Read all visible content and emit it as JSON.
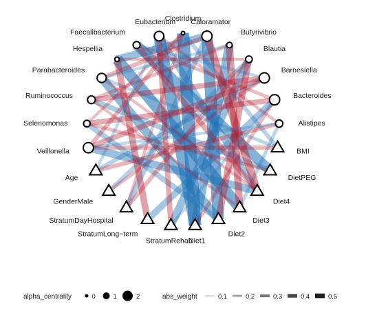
{
  "nodes": [
    {
      "id": "Clostridium",
      "shape": "circle",
      "size": 0.0
    },
    {
      "id": "Caloramator",
      "shape": "circle",
      "size": 1.9
    },
    {
      "id": "Butyrivibrio",
      "shape": "circle",
      "size": 0.6
    },
    {
      "id": "Blautia",
      "shape": "circle",
      "size": 0.9
    },
    {
      "id": "Barnesiella",
      "shape": "circle",
      "size": 1.9
    },
    {
      "id": "Bacteroides",
      "shape": "circle",
      "size": 1.9
    },
    {
      "id": "Alistipes",
      "shape": "circle",
      "size": 1.1
    },
    {
      "id": "BMI",
      "shape": "triangle"
    },
    {
      "id": "DietPEG",
      "shape": "triangle"
    },
    {
      "id": "Diet4",
      "shape": "triangle"
    },
    {
      "id": "Diet3",
      "shape": "triangle"
    },
    {
      "id": "Diet2",
      "shape": "triangle"
    },
    {
      "id": "Diet1",
      "shape": "triangle"
    },
    {
      "id": "StratumRehab",
      "shape": "triangle"
    },
    {
      "id": "StratumLong−term",
      "shape": "triangle"
    },
    {
      "id": "StratumDayHospital",
      "shape": "triangle"
    },
    {
      "id": "GenderMale",
      "shape": "triangle"
    },
    {
      "id": "Age",
      "shape": "triangle"
    },
    {
      "id": "Veillonella",
      "shape": "circle",
      "size": 1.9
    },
    {
      "id": "Selenomonas",
      "shape": "circle",
      "size": 0.9
    },
    {
      "id": "Ruminococcus",
      "shape": "circle",
      "size": 1.2
    },
    {
      "id": "Parabacteroides",
      "shape": "circle",
      "size": 1.6
    },
    {
      "id": "Hespellia",
      "shape": "circle",
      "size": 0.3
    },
    {
      "id": "Faecalibacterium",
      "shape": "circle",
      "size": 1.0
    },
    {
      "id": "Eubacterium",
      "shape": "circle",
      "size": 1.7
    }
  ],
  "edge_colors": {
    "positive": "#2171b5",
    "negative": "#b2182b"
  },
  "edges": [
    [
      "Clostridium",
      "Diet1",
      0.5,
      "positive"
    ],
    [
      "Caloramator",
      "Diet2",
      0.45,
      "positive"
    ],
    [
      "Eubacterium",
      "Diet1",
      0.45,
      "positive"
    ],
    [
      "Faecalibacterium",
      "DietPEG",
      0.4,
      "positive"
    ],
    [
      "Hespellia",
      "Diet3",
      0.45,
      "positive"
    ],
    [
      "Parabacteroides",
      "Diet2",
      0.35,
      "positive"
    ],
    [
      "Butyrivibrio",
      "Diet1",
      0.35,
      "positive"
    ],
    [
      "Blautia",
      "StratumRehab",
      0.3,
      "positive"
    ],
    [
      "Veillonella",
      "Diet4",
      0.3,
      "positive"
    ],
    [
      "Hespellia",
      "Caloramator",
      0.3,
      "positive"
    ],
    [
      "Bacteroides",
      "StratumLong−term",
      0.25,
      "positive"
    ],
    [
      "Caloramator",
      "StratumDayHospital",
      0.2,
      "positive"
    ],
    [
      "Ruminococcus",
      "DietPEG",
      0.2,
      "positive"
    ],
    [
      "Eubacterium",
      "Diet4",
      0.25,
      "positive"
    ],
    [
      "Selenomonas",
      "Diet2",
      0.2,
      "positive"
    ],
    [
      "Clostridium",
      "BMI",
      0.15,
      "positive"
    ],
    [
      "Age",
      "Barnesiella",
      0.15,
      "positive"
    ],
    [
      "GenderMale",
      "Blautia",
      0.15,
      "positive"
    ],
    [
      "Parabacteroides",
      "BMI",
      0.12,
      "positive"
    ],
    [
      "Alistipes",
      "Diet3",
      0.12,
      "positive"
    ],
    [
      "Caloramator",
      "Diet4",
      0.3,
      "negative"
    ],
    [
      "Butyrivibrio",
      "Diet3",
      0.28,
      "negative"
    ],
    [
      "Blautia",
      "Diet2",
      0.25,
      "negative"
    ],
    [
      "Barnesiella",
      "Veillonella",
      0.2,
      "negative"
    ],
    [
      "Bacteroides",
      "Selenomonas",
      0.2,
      "negative"
    ],
    [
      "Ruminococcus",
      "Barnesiella",
      0.2,
      "negative"
    ],
    [
      "Hespellia",
      "StratumLong−term",
      0.25,
      "negative"
    ],
    [
      "Faecalibacterium",
      "Diet4",
      0.2,
      "negative"
    ],
    [
      "Eubacterium",
      "StratumRehab",
      0.2,
      "negative"
    ],
    [
      "Clostridium",
      "Veillonella",
      0.15,
      "negative"
    ],
    [
      "Caloramator",
      "Parabacteroides",
      0.15,
      "negative"
    ],
    [
      "Alistipes",
      "Age",
      0.15,
      "negative"
    ],
    [
      "BMI",
      "Veillonella",
      0.15,
      "negative"
    ],
    [
      "Butyrivibrio",
      "Ruminococcus",
      0.12,
      "negative"
    ],
    [
      "Blautia",
      "StratumDayHospital",
      0.15,
      "negative"
    ],
    [
      "Bacteroides",
      "Diet1",
      0.12,
      "negative"
    ],
    [
      "Barnesiella",
      "GenderMale",
      0.12,
      "negative"
    ],
    [
      "Faecalibacterium",
      "Bacteroides",
      0.12,
      "negative"
    ],
    [
      "Eubacterium",
      "Alistipes",
      0.1,
      "negative"
    ],
    [
      "DietPEG",
      "Selenomonas",
      0.12,
      "negative"
    ],
    [
      "Parabacteroides",
      "Diet4",
      0.1,
      "negative"
    ],
    [
      "Clostridium",
      "Selenomonas",
      0.1,
      "negative"
    ],
    [
      "Hespellia",
      "Blautia",
      0.1,
      "negative"
    ],
    [
      "Diet3",
      "Ruminococcus",
      0.1,
      "negative"
    ],
    [
      "Alistipes",
      "Veillonella",
      0.1,
      "positive"
    ],
    [
      "Faecalibacterium",
      "Barnesiella",
      0.1,
      "positive"
    ],
    [
      "Eubacterium",
      "Age",
      0.1,
      "positive"
    ],
    [
      "Butyrivibrio",
      "Parabacteroides",
      0.1,
      "positive"
    ],
    [
      "Bacteroides",
      "StratumRehab",
      0.1,
      "positive"
    ],
    [
      "Clostridium",
      "StratumDayHospital",
      0.1,
      "negative"
    ]
  ],
  "legend": {
    "alpha_centrality": {
      "title": "alpha_centrality",
      "items": [
        {
          "label": "0",
          "value": 0
        },
        {
          "label": "1",
          "value": 1
        },
        {
          "label": "2",
          "value": 2
        }
      ]
    },
    "abs_weight": {
      "title": "abs_weight",
      "items": [
        {
          "label": "0.1",
          "value": 0.1
        },
        {
          "label": "0.2",
          "value": 0.2
        },
        {
          "label": "0.3",
          "value": 0.3
        },
        {
          "label": "0.4",
          "value": 0.4
        },
        {
          "label": "0.5",
          "value": 0.5
        }
      ]
    }
  }
}
